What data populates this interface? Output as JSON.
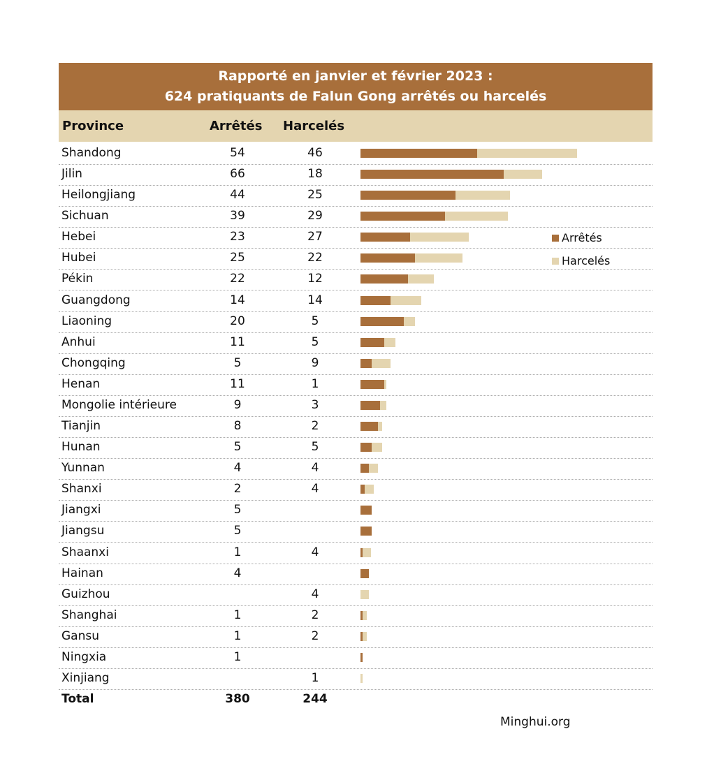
{
  "chart_data": {
    "type": "bar",
    "stacked": true,
    "orientation": "horizontal",
    "title": "Rapporté en janvier et février 2023 :",
    "subtitle": "624 pratiquants de Falun Gong arrêtés ou harcelés",
    "columns": [
      "Province",
      "Arrêtés",
      "Harcelés"
    ],
    "categories": [
      "Shandong",
      "Jilin",
      "Heilongjiang",
      "Sichuan",
      "Hebei",
      "Hubei",
      "Pékin",
      "Guangdong",
      "Liaoning",
      "Anhui",
      "Chongqing",
      "Henan",
      "Mongolie intérieure",
      "Tianjin",
      "Hunan",
      "Yunnan",
      "Shanxi",
      "Jiangxi",
      "Jiangsu",
      "Shaanxi",
      "Hainan",
      "Guizhou",
      "Shanghai",
      "Gansu",
      "Ningxia",
      "Xinjiang"
    ],
    "series": [
      {
        "name": "Arrêtés",
        "color": "#a86f3b",
        "values": [
          54,
          66,
          44,
          39,
          23,
          25,
          22,
          14,
          20,
          11,
          5,
          11,
          9,
          8,
          5,
          4,
          2,
          5,
          5,
          1,
          4,
          null,
          1,
          1,
          1,
          null
        ]
      },
      {
        "name": "Harcelés",
        "color": "#e4d5b0",
        "values": [
          46,
          18,
          25,
          29,
          27,
          22,
          12,
          14,
          5,
          5,
          9,
          1,
          3,
          2,
          5,
          4,
          4,
          null,
          null,
          4,
          null,
          4,
          2,
          2,
          null,
          1
        ]
      }
    ],
    "total": {
      "label": "Total",
      "arrested": "380",
      "harassed": "244"
    },
    "legend": "right",
    "source": "Minghui.org"
  }
}
